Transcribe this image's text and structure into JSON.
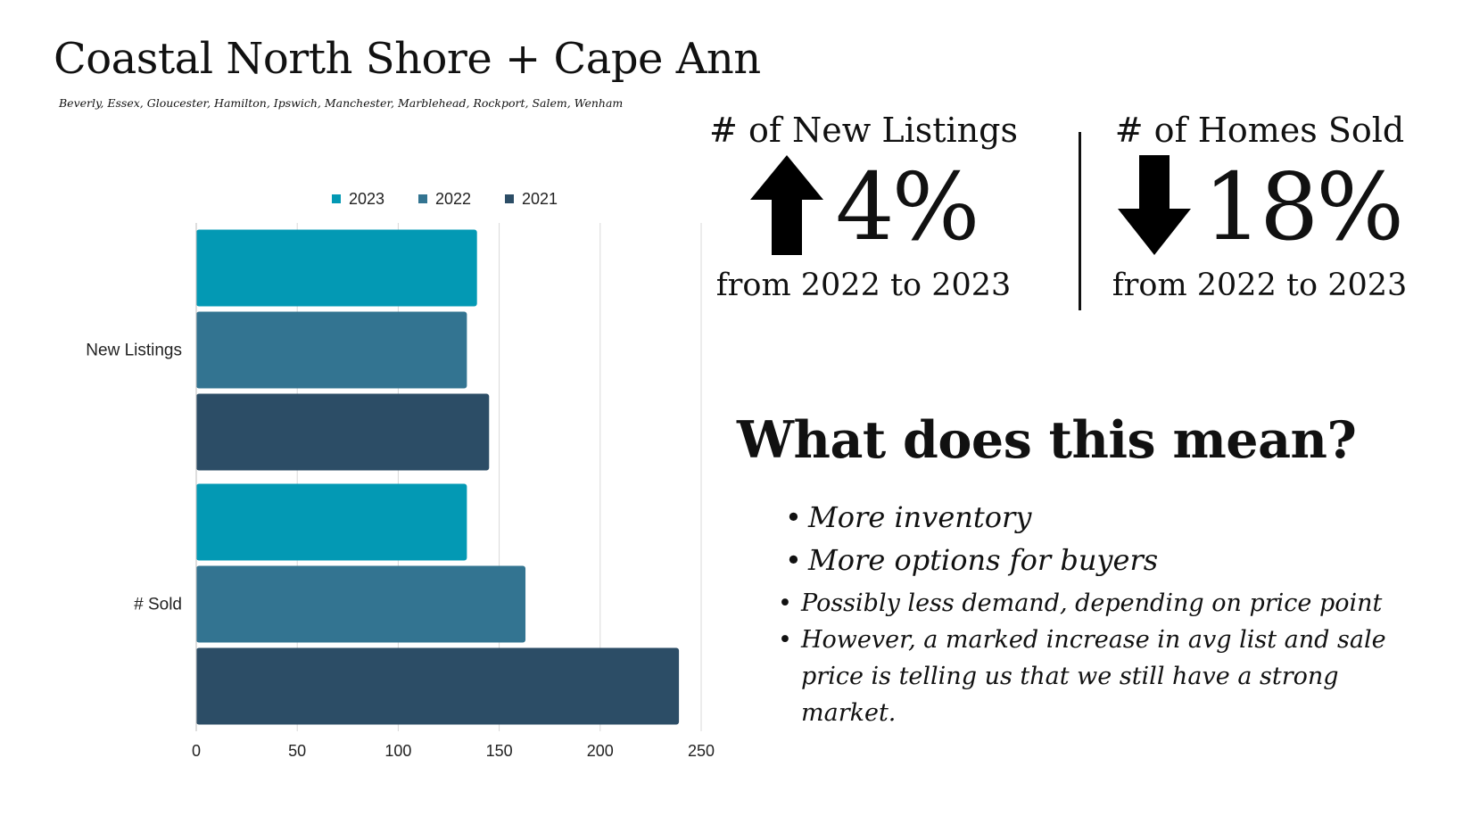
{
  "header": {
    "title": "Coastal North Shore + Cape Ann",
    "subtitle": "Beverly, Essex, Gloucester, Hamilton, Ipswich, Manchester, Marblehead, Rockport, Salem, Wenham"
  },
  "stats": {
    "new_listings": {
      "label": "# of New Listings",
      "direction": "up",
      "icon": "arrow-up-icon",
      "value": "4%",
      "footnote": "from 2022 to 2023"
    },
    "homes_sold": {
      "label": "# of Homes Sold",
      "direction": "down",
      "icon": "arrow-down-icon",
      "value": "18%",
      "footnote": "from 2022 to 2023"
    }
  },
  "meaning": {
    "title": "What does this mean?",
    "bullets": [
      "More inventory",
      "More options for buyers",
      "Possibly less demand, depending on price point",
      "However, a marked increase in avg list and sale price is telling us that we still have a strong market."
    ]
  },
  "chart_data": {
    "type": "bar",
    "orientation": "horizontal",
    "categories": [
      "New Listings",
      "# Sold"
    ],
    "series": [
      {
        "name": "2023",
        "color": "#0399b4",
        "values": [
          139,
          134
        ]
      },
      {
        "name": "2022",
        "color": "#337491",
        "values": [
          134,
          163
        ]
      },
      {
        "name": "2021",
        "color": "#2c4d66",
        "values": [
          145,
          239
        ]
      }
    ],
    "xlim": [
      0,
      250
    ],
    "xticks": [
      0,
      50,
      100,
      150,
      200,
      250
    ],
    "grid": true,
    "legend": "top"
  }
}
